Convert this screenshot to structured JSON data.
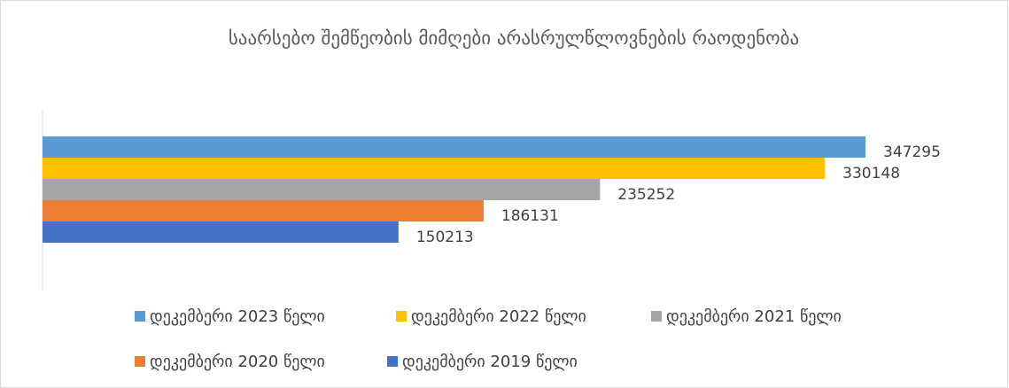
{
  "chart_data": {
    "type": "hbar",
    "title": "საარსებო შემწეობის მიმღები არასრულწლოვნების რაოდენობა",
    "categories": [
      null
    ],
    "series": [
      {
        "name": "დეკემბერი 2023 წელი",
        "color": "#5b9bd5",
        "values": [
          347295
        ]
      },
      {
        "name": "დეკემბერი 2022 წელი",
        "color": "#ffc000",
        "values": [
          330148
        ]
      },
      {
        "name": "დეკემბერი 2021 წელი",
        "color": "#a5a5a5",
        "values": [
          235252
        ]
      },
      {
        "name": "დეკემბერი 2020 წელი",
        "color": "#ed7d31",
        "values": [
          186131
        ]
      },
      {
        "name": "დეკემბერი 2019 წელი",
        "color": "#4472c4",
        "values": [
          150213
        ]
      }
    ],
    "xlim": [
      0,
      400000
    ],
    "legend": "bottom"
  }
}
